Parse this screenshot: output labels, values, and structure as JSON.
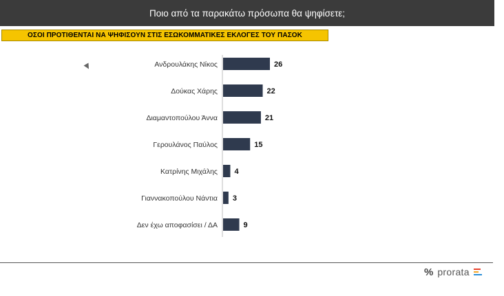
{
  "header": {
    "title": "Ποιο από τα παρακάτω πρόσωπα θα ψηφίσετε;",
    "subtitle": "ΟΣΟΙ ΠΡΟΤΙΘΕΝΤΑΙ ΝΑ ΨΗΦΙΣΟΥΝ ΣΤΙΣ ΕΣΩΚΟΜΜΑΤΙΚΕΣ ΕΚΛΟΓΕΣ ΤΟΥ ΠΑΣΟΚ"
  },
  "chart_data": {
    "type": "bar",
    "orientation": "horizontal",
    "title": "Ποιο από τα παρακάτω πρόσωπα θα ψηφίσετε;",
    "subtitle": "ΟΣΟΙ ΠΡΟΤΙΘΕΝΤΑΙ ΝΑ ΨΗΦΙΣΟΥΝ ΣΤΙΣ ΕΣΩΚΟΜΜΑΤΙΚΕΣ ΕΚΛΟΓΕΣ ΤΟΥ ΠΑΣΟΚ",
    "categories": [
      "Ανδρουλάκης Νίκος",
      "Δούκας Χάρης",
      "Διαμαντοπούλου Άννα",
      "Γερουλάνος Παύλος",
      "Κατρίνης Μιχάλης",
      "Γιαννακοπούλου Νάντια",
      "Δεν έχω αποφασίσει / ΔΑ"
    ],
    "values": [
      26,
      22,
      21,
      15,
      4,
      3,
      9
    ],
    "xlim": [
      0,
      30
    ],
    "grid": false,
    "bar_color": "#2f3a4e",
    "data_labels": true
  },
  "footer": {
    "logo_text": "prorata",
    "logo_mark": "%",
    "logo_colors": [
      "#e8412c",
      "#f5a623",
      "#2b8fd6"
    ]
  },
  "colors": {
    "title_bg": "#3b3b3b",
    "subtitle_bg": "#f5c400"
  }
}
